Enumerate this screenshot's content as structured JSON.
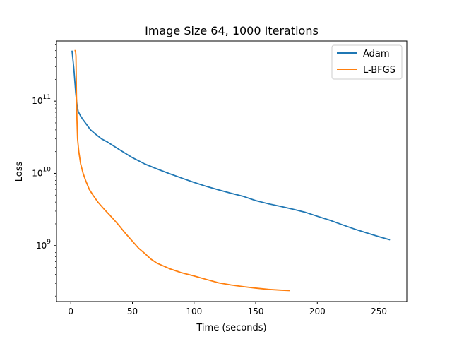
{
  "chart_data": {
    "type": "line",
    "title": "Image Size 64, 1000 Iterations",
    "xlabel": "Time (seconds)",
    "ylabel": "Loss",
    "xlim": [
      -11.6,
      272.6
    ],
    "ylim": [
      168000000,
      680000000000
    ],
    "yscale": "log",
    "x_ticks": [
      0,
      50,
      100,
      150,
      200,
      250
    ],
    "y_ticks": [
      {
        "value": 1000000000,
        "base": "10",
        "exp": "9"
      },
      {
        "value": 10000000000,
        "base": "10",
        "exp": "10"
      },
      {
        "value": 100000000000,
        "base": "10",
        "exp": "11"
      }
    ],
    "grid": false,
    "legend": "top-right",
    "series": [
      {
        "name": "Adam",
        "color": "#1f77b4",
        "points": [
          [
            1,
            500000000000
          ],
          [
            2.5,
            280000000000
          ],
          [
            4,
            130000000000
          ],
          [
            5,
            90000000000
          ],
          [
            6,
            72000000000
          ],
          [
            8,
            62000000000
          ],
          [
            10,
            55000000000
          ],
          [
            13,
            47000000000
          ],
          [
            16,
            40000000000
          ],
          [
            20,
            35000000000
          ],
          [
            25,
            30000000000
          ],
          [
            30,
            27000000000
          ],
          [
            40,
            21000000000
          ],
          [
            50,
            16500000000
          ],
          [
            60,
            13500000000
          ],
          [
            70,
            11500000000
          ],
          [
            80,
            9900000000
          ],
          [
            90,
            8600000000
          ],
          [
            100,
            7500000000
          ],
          [
            110,
            6600000000
          ],
          [
            120,
            5900000000
          ],
          [
            130,
            5300000000
          ],
          [
            140,
            4800000000
          ],
          [
            150,
            4200000000
          ],
          [
            160,
            3800000000
          ],
          [
            170,
            3500000000
          ],
          [
            180,
            3200000000
          ],
          [
            190,
            2900000000
          ],
          [
            200,
            2550000000
          ],
          [
            210,
            2250000000
          ],
          [
            220,
            1950000000
          ],
          [
            230,
            1700000000
          ],
          [
            240,
            1500000000
          ],
          [
            250,
            1330000000
          ],
          [
            259,
            1200000000
          ]
        ]
      },
      {
        "name": "L-BFGS",
        "color": "#ff7f0e",
        "points": [
          [
            3,
            500000000000
          ],
          [
            3.8,
            500000000000
          ],
          [
            4.2,
            420000000000
          ],
          [
            4.6,
            120000000000
          ],
          [
            5,
            55000000000
          ],
          [
            5.5,
            30000000000
          ],
          [
            6.5,
            20000000000
          ],
          [
            8,
            13500000000
          ],
          [
            10,
            10000000000
          ],
          [
            12,
            8000000000
          ],
          [
            15,
            6000000000
          ],
          [
            18,
            5000000000
          ],
          [
            22,
            4000000000
          ],
          [
            27,
            3200000000
          ],
          [
            32,
            2600000000
          ],
          [
            38,
            2000000000
          ],
          [
            44,
            1500000000
          ],
          [
            50,
            1150000000
          ],
          [
            55,
            920000000
          ],
          [
            60,
            780000000
          ],
          [
            65,
            650000000
          ],
          [
            70,
            570000000
          ],
          [
            80,
            480000000
          ],
          [
            90,
            420000000
          ],
          [
            100,
            380000000
          ],
          [
            110,
            340000000
          ],
          [
            120,
            305000000
          ],
          [
            130,
            285000000
          ],
          [
            140,
            270000000
          ],
          [
            150,
            258000000
          ],
          [
            160,
            248000000
          ],
          [
            170,
            242000000
          ],
          [
            178,
            238000000
          ]
        ]
      }
    ]
  }
}
